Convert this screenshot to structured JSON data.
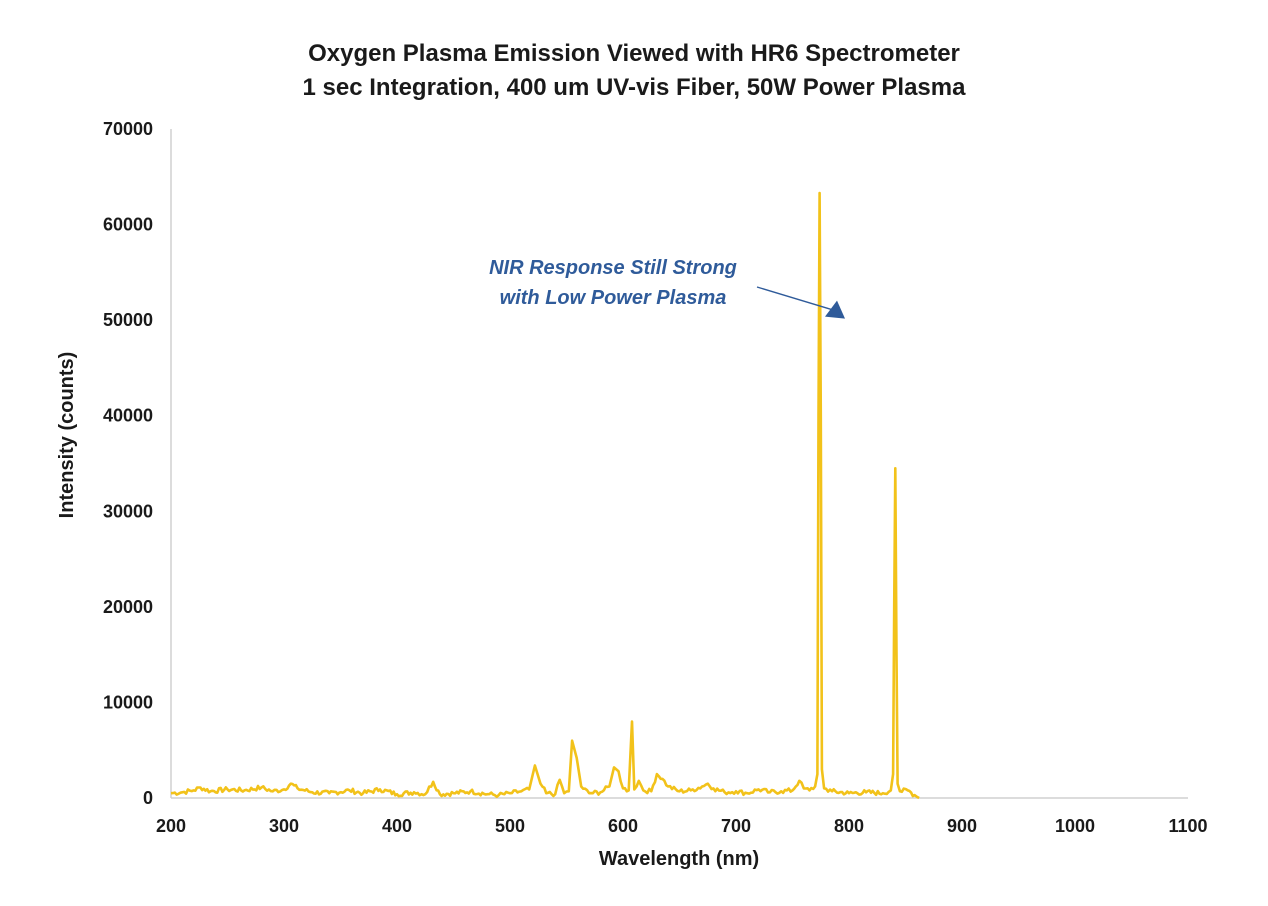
{
  "chart_data": {
    "type": "line",
    "title": "Oxygen Plasma Emission Viewed with HR6 Spectrometer",
    "subtitle": "1 sec Integration, 400 um UV-vis Fiber, 50W Power Plasma",
    "xlabel": "Wavelength (nm)",
    "ylabel": "Intensity (counts)",
    "xlim": [
      200,
      1100
    ],
    "ylim": [
      0,
      70000
    ],
    "x_ticks": [
      "200",
      "300",
      "400",
      "500",
      "600",
      "700",
      "800",
      "900",
      "1000",
      "1100"
    ],
    "y_ticks": [
      "0",
      "10000",
      "20000",
      "30000",
      "40000",
      "50000",
      "60000",
      "70000"
    ],
    "grid": false,
    "legend": "none",
    "series_color": "#f2c21a",
    "annotation": {
      "line1": "NIR Response Still Strong",
      "line2": "with Low Power Plasma",
      "points_to_x": 777,
      "points_to_y": 51000,
      "color": "#2f5b9a"
    },
    "baseline": [
      [
        200,
        500
      ],
      [
        210,
        600
      ],
      [
        220,
        800
      ],
      [
        226,
        1100
      ],
      [
        235,
        700
      ],
      [
        250,
        900
      ],
      [
        265,
        800
      ],
      [
        280,
        1100
      ],
      [
        290,
        700
      ],
      [
        300,
        900
      ],
      [
        306,
        1500
      ],
      [
        312,
        1000
      ],
      [
        325,
        600
      ],
      [
        340,
        500
      ],
      [
        358,
        800
      ],
      [
        370,
        500
      ],
      [
        385,
        900
      ],
      [
        400,
        400
      ],
      [
        415,
        600
      ],
      [
        425,
        400
      ],
      [
        432,
        1700
      ],
      [
        438,
        400
      ],
      [
        450,
        500
      ],
      [
        465,
        700
      ],
      [
        480,
        400
      ],
      [
        490,
        300
      ],
      [
        500,
        500
      ],
      [
        510,
        700
      ],
      [
        517,
        900
      ],
      [
        522,
        3400
      ],
      [
        527,
        1500
      ],
      [
        532,
        500
      ],
      [
        540,
        400
      ],
      [
        544,
        1900
      ],
      [
        548,
        500
      ],
      [
        552,
        700
      ],
      [
        555,
        6000
      ],
      [
        559,
        4200
      ],
      [
        563,
        1200
      ],
      [
        570,
        500
      ],
      [
        580,
        600
      ],
      [
        588,
        1200
      ],
      [
        592,
        3200
      ],
      [
        596,
        2800
      ],
      [
        600,
        1000
      ],
      [
        605,
        800
      ],
      [
        608,
        8000
      ],
      [
        610,
        900
      ],
      [
        614,
        1800
      ],
      [
        618,
        800
      ],
      [
        625,
        700
      ],
      [
        630,
        2500
      ],
      [
        635,
        2000
      ],
      [
        640,
        1200
      ],
      [
        650,
        700
      ],
      [
        660,
        800
      ],
      [
        670,
        1200
      ],
      [
        675,
        1500
      ],
      [
        680,
        1000
      ],
      [
        690,
        600
      ],
      [
        700,
        700
      ],
      [
        710,
        500
      ],
      [
        720,
        900
      ],
      [
        730,
        600
      ],
      [
        740,
        700
      ],
      [
        750,
        800
      ],
      [
        756,
        1800
      ],
      [
        760,
        1000
      ],
      [
        765,
        800
      ],
      [
        770,
        1200
      ],
      [
        772,
        2500
      ],
      [
        773,
        40000
      ],
      [
        774,
        63300
      ],
      [
        775,
        40000
      ],
      [
        776,
        3000
      ],
      [
        778,
        1000
      ],
      [
        785,
        700
      ],
      [
        800,
        500
      ],
      [
        815,
        600
      ],
      [
        830,
        500
      ],
      [
        837,
        800
      ],
      [
        839,
        2500
      ],
      [
        840,
        20000
      ],
      [
        841,
        34500
      ],
      [
        842,
        15000
      ],
      [
        843,
        1500
      ],
      [
        845,
        700
      ],
      [
        852,
        800
      ],
      [
        858,
        300
      ],
      [
        862,
        0
      ]
    ]
  }
}
